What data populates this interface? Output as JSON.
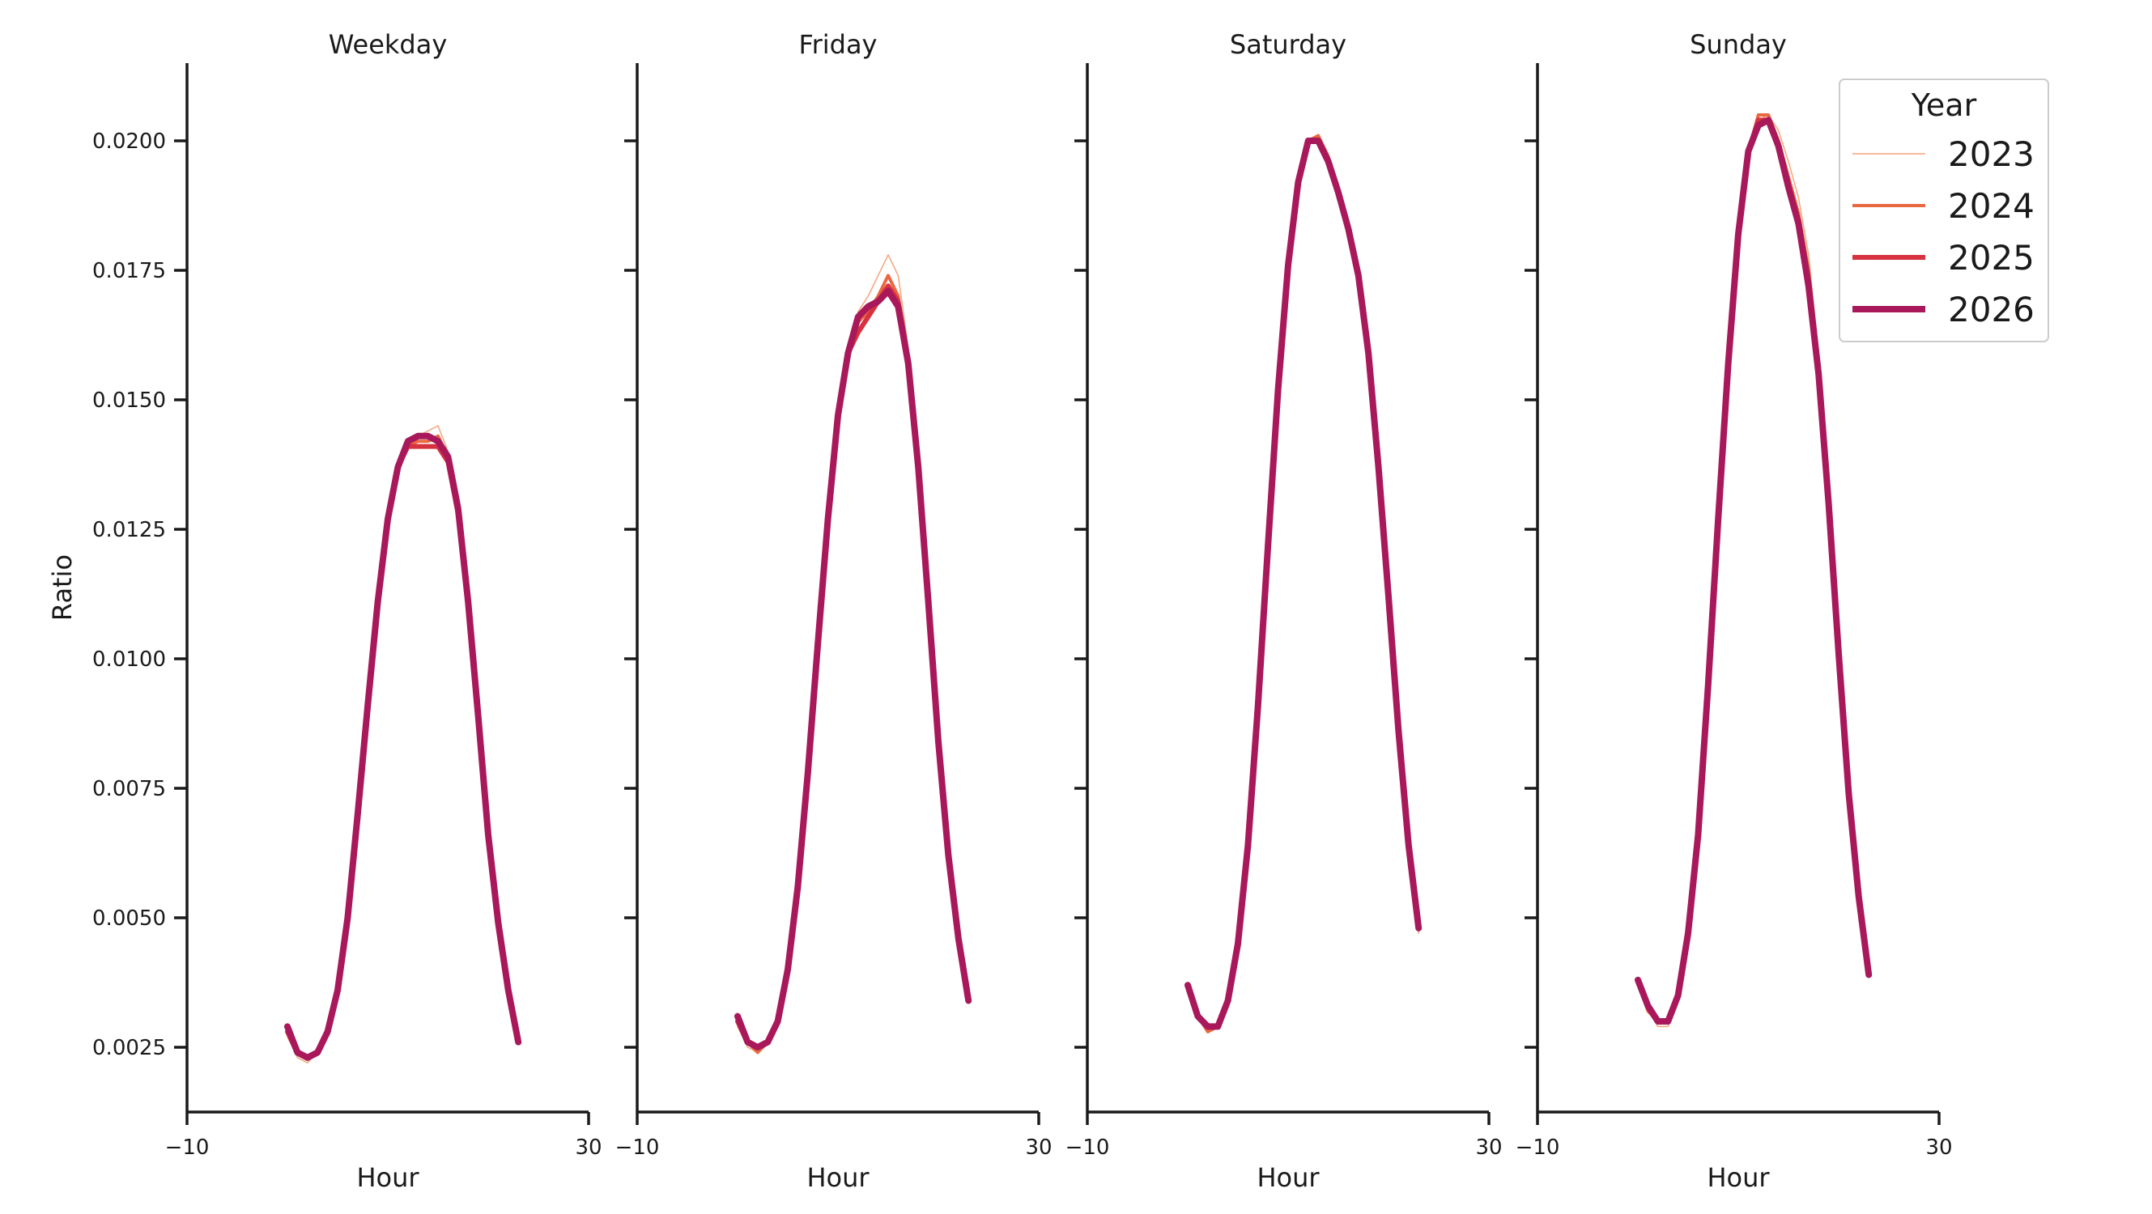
{
  "chart_data": {
    "type": "line",
    "ylabel": "Ratio",
    "xlabel": "Hour",
    "xlim": [
      -10,
      30
    ],
    "ylim": [
      0.00125,
      0.0215
    ],
    "xticks": [
      -10,
      30
    ],
    "xtick_labels": [
      "−10",
      "30"
    ],
    "yticks": [
      0.0025,
      0.005,
      0.0075,
      0.01,
      0.0125,
      0.015,
      0.0175,
      0.02
    ],
    "ytick_labels": [
      "0.0025",
      "0.0050",
      "0.0075",
      "0.0100",
      "0.0125",
      "0.0150",
      "0.0175",
      "0.0200"
    ],
    "legend": {
      "title": "Year",
      "placement": "top-right",
      "entries": [
        "2023",
        "2024",
        "2025",
        "2026"
      ]
    },
    "series_styles": [
      {
        "name": "2023",
        "color": "#f6a47a"
      },
      {
        "name": "2024",
        "color": "#ea6840"
      },
      {
        "name": "2025",
        "color": "#d7323f"
      },
      {
        "name": "2026",
        "color": "#a8185a"
      }
    ],
    "panels": [
      {
        "title": "Weekday",
        "x": [
          0,
          1,
          2,
          3,
          4,
          5,
          6,
          7,
          8,
          9,
          10,
          11,
          12,
          13,
          14,
          15,
          16,
          17,
          18,
          19,
          20,
          21,
          22,
          23
        ],
        "series": [
          {
            "name": "2023",
            "values": [
              0.0027,
              0.0023,
              0.0022,
              0.0024,
              0.0028,
              0.0036,
              0.005,
              0.007,
              0.0091,
              0.0111,
              0.0127,
              0.0137,
              0.0141,
              0.0143,
              0.0144,
              0.0145,
              0.014,
              0.0128,
              0.0111,
              0.0089,
              0.0066,
              0.0049,
              0.0036,
              0.0026
            ]
          },
          {
            "name": "2024",
            "values": [
              0.0028,
              0.0024,
              0.0023,
              0.0024,
              0.0028,
              0.0036,
              0.005,
              0.007,
              0.0091,
              0.0111,
              0.0127,
              0.0137,
              0.0141,
              0.0142,
              0.0142,
              0.0143,
              0.0139,
              0.0128,
              0.0111,
              0.0089,
              0.0066,
              0.0049,
              0.0036,
              0.0026
            ]
          },
          {
            "name": "2025",
            "values": [
              0.0028,
              0.0024,
              0.0023,
              0.0024,
              0.0028,
              0.0036,
              0.005,
              0.007,
              0.0091,
              0.0111,
              0.0127,
              0.0137,
              0.0141,
              0.0141,
              0.0141,
              0.0141,
              0.0138,
              0.0128,
              0.0111,
              0.0089,
              0.0066,
              0.0049,
              0.0036,
              0.0026
            ]
          },
          {
            "name": "2026",
            "values": [
              0.0029,
              0.0024,
              0.0023,
              0.0024,
              0.0028,
              0.0036,
              0.005,
              0.007,
              0.0091,
              0.0111,
              0.0127,
              0.0137,
              0.0142,
              0.0143,
              0.0143,
              0.0142,
              0.0139,
              0.0129,
              0.0111,
              0.0089,
              0.0066,
              0.0049,
              0.0036,
              0.0026
            ]
          }
        ]
      },
      {
        "title": "Friday",
        "x": [
          0,
          1,
          2,
          3,
          4,
          5,
          6,
          7,
          8,
          9,
          10,
          11,
          12,
          13,
          14,
          15,
          16,
          17,
          18,
          19,
          20,
          21,
          22,
          23
        ],
        "series": [
          {
            "name": "2023",
            "values": [
              0.0029,
              0.0025,
              0.0024,
              0.0026,
              0.003,
              0.004,
              0.0056,
              0.0078,
              0.0103,
              0.0127,
              0.0147,
              0.016,
              0.0167,
              0.017,
              0.0174,
              0.0178,
              0.0174,
              0.016,
              0.0138,
              0.0112,
              0.0085,
              0.0062,
              0.0046,
              0.0034
            ]
          },
          {
            "name": "2024",
            "values": [
              0.003,
              0.0026,
              0.0024,
              0.0026,
              0.003,
              0.004,
              0.0056,
              0.0078,
              0.0103,
              0.0127,
              0.0147,
              0.0159,
              0.0165,
              0.0167,
              0.017,
              0.0174,
              0.017,
              0.0157,
              0.0137,
              0.0111,
              0.0084,
              0.0062,
              0.0046,
              0.0034
            ]
          },
          {
            "name": "2025",
            "values": [
              0.003,
              0.0026,
              0.0025,
              0.0026,
              0.003,
              0.004,
              0.0056,
              0.0078,
              0.0103,
              0.0127,
              0.0147,
              0.0159,
              0.0163,
              0.0166,
              0.0169,
              0.0172,
              0.0169,
              0.0157,
              0.0137,
              0.0111,
              0.0084,
              0.0062,
              0.0046,
              0.0034
            ]
          },
          {
            "name": "2026",
            "values": [
              0.0031,
              0.0026,
              0.0025,
              0.0026,
              0.003,
              0.004,
              0.0056,
              0.0078,
              0.0103,
              0.0127,
              0.0147,
              0.0159,
              0.0166,
              0.0168,
              0.0169,
              0.0171,
              0.0168,
              0.0157,
              0.0137,
              0.0111,
              0.0084,
              0.0062,
              0.0046,
              0.0034
            ]
          }
        ]
      },
      {
        "title": "Saturday",
        "x": [
          0,
          1,
          2,
          3,
          4,
          5,
          6,
          7,
          8,
          9,
          10,
          11,
          12,
          13,
          14,
          15,
          16,
          17,
          18,
          19,
          20,
          21,
          22,
          23
        ],
        "series": [
          {
            "name": "2023",
            "values": [
              0.0036,
              0.0031,
              0.0028,
              0.0029,
              0.0034,
              0.0045,
              0.0064,
              0.0091,
              0.0122,
              0.0152,
              0.0176,
              0.0192,
              0.02,
              0.0201,
              0.0197,
              0.0191,
              0.0183,
              0.0175,
              0.0159,
              0.0137,
              0.0112,
              0.0086,
              0.0064,
              0.0047
            ]
          },
          {
            "name": "2024",
            "values": [
              0.0036,
              0.0031,
              0.0028,
              0.0029,
              0.0034,
              0.0045,
              0.0064,
              0.0091,
              0.0122,
              0.0152,
              0.0176,
              0.0192,
              0.02,
              0.0201,
              0.0197,
              0.0191,
              0.0183,
              0.0174,
              0.0159,
              0.0137,
              0.0112,
              0.0086,
              0.0064,
              0.0048
            ]
          },
          {
            "name": "2025",
            "values": [
              0.0037,
              0.0031,
              0.0029,
              0.0029,
              0.0034,
              0.0045,
              0.0064,
              0.0091,
              0.0122,
              0.0152,
              0.0176,
              0.0192,
              0.02,
              0.02,
              0.0196,
              0.019,
              0.0183,
              0.0174,
              0.0159,
              0.0137,
              0.0112,
              0.0086,
              0.0064,
              0.0048
            ]
          },
          {
            "name": "2026",
            "values": [
              0.0037,
              0.0031,
              0.0029,
              0.0029,
              0.0034,
              0.0045,
              0.0064,
              0.0091,
              0.0122,
              0.0152,
              0.0176,
              0.0192,
              0.02,
              0.02,
              0.0196,
              0.019,
              0.0183,
              0.0174,
              0.0159,
              0.0137,
              0.0112,
              0.0086,
              0.0064,
              0.0048
            ]
          }
        ]
      },
      {
        "title": "Sunday",
        "x": [
          0,
          1,
          2,
          3,
          4,
          5,
          6,
          7,
          8,
          9,
          10,
          11,
          12,
          13,
          14,
          15,
          16,
          17,
          18,
          19,
          20,
          21,
          22,
          23
        ],
        "series": [
          {
            "name": "2023",
            "values": [
              0.0038,
              0.0032,
              0.0029,
              0.0029,
              0.0035,
              0.0047,
              0.0066,
              0.0095,
              0.0127,
              0.0157,
              0.0182,
              0.0198,
              0.0204,
              0.0205,
              0.0202,
              0.0196,
              0.0189,
              0.0178,
              0.0159,
              0.0132,
              0.0102,
              0.0074,
              0.0054,
              0.0039
            ]
          },
          {
            "name": "2024",
            "values": [
              0.0038,
              0.0032,
              0.003,
              0.003,
              0.0035,
              0.0047,
              0.0066,
              0.0095,
              0.0127,
              0.0157,
              0.0182,
              0.0198,
              0.0205,
              0.0205,
              0.02,
              0.0193,
              0.0186,
              0.0175,
              0.0157,
              0.0131,
              0.0101,
              0.0074,
              0.0054,
              0.0039
            ]
          },
          {
            "name": "2025",
            "values": [
              0.0038,
              0.0033,
              0.003,
              0.003,
              0.0035,
              0.0047,
              0.0066,
              0.0095,
              0.0127,
              0.0157,
              0.0182,
              0.0198,
              0.0204,
              0.0204,
              0.0199,
              0.0191,
              0.0184,
              0.0173,
              0.0156,
              0.013,
              0.0101,
              0.0074,
              0.0054,
              0.0039
            ]
          },
          {
            "name": "2026",
            "values": [
              0.0038,
              0.0033,
              0.003,
              0.003,
              0.0035,
              0.0047,
              0.0066,
              0.0095,
              0.0127,
              0.0157,
              0.0182,
              0.0198,
              0.0203,
              0.0204,
              0.0199,
              0.0191,
              0.0184,
              0.0172,
              0.0155,
              0.013,
              0.0101,
              0.0074,
              0.0054,
              0.0039
            ]
          }
        ]
      }
    ]
  }
}
